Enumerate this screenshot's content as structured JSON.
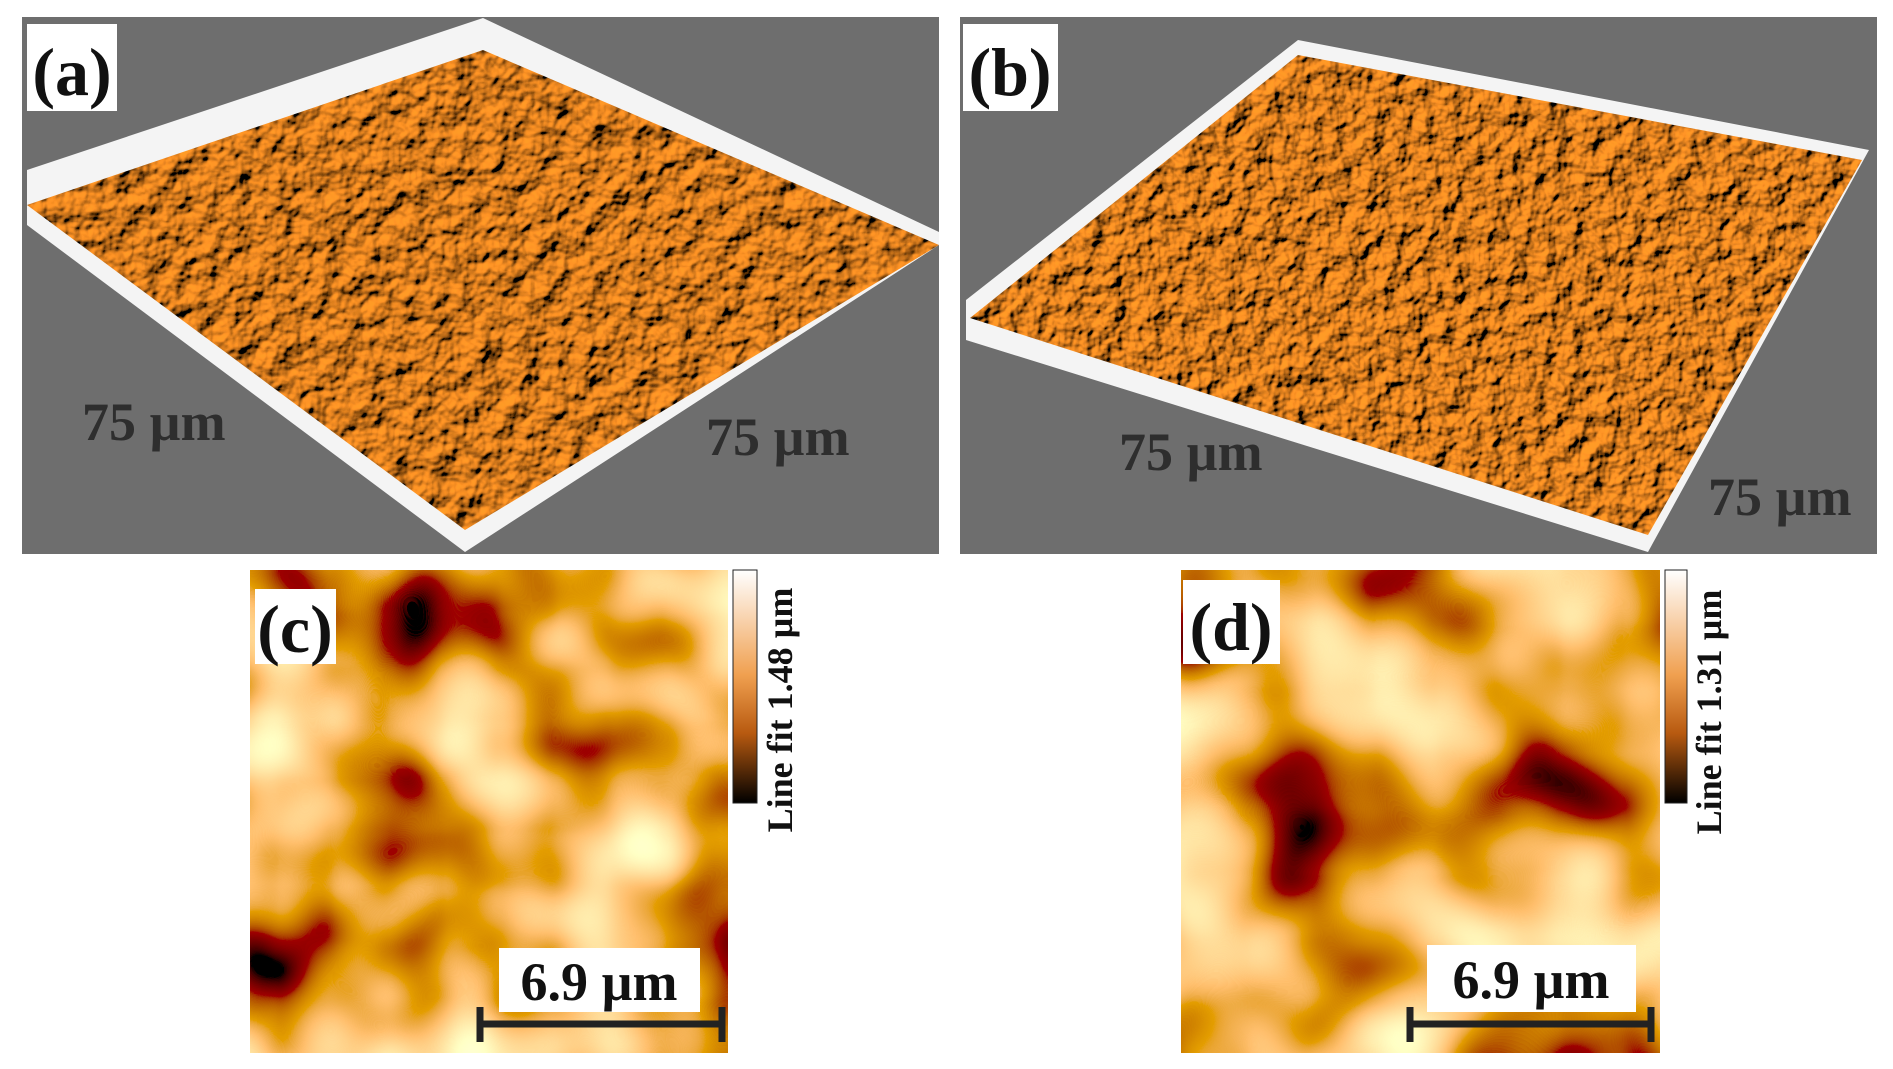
{
  "panels": [
    {
      "label": "(a)",
      "axis_labels": [
        "75 µm",
        "75 µm"
      ]
    },
    {
      "label": "(b)",
      "axis_labels": [
        "75 µm",
        "75 µm"
      ]
    },
    {
      "label": "(c)",
      "scale_bar": "6.9 µm",
      "colorbar_label": "Line fit 1.48 µm"
    },
    {
      "label": "(d)",
      "scale_bar": "6.9 µm",
      "colorbar_label": "Line fit 1.31 µm"
    }
  ]
}
